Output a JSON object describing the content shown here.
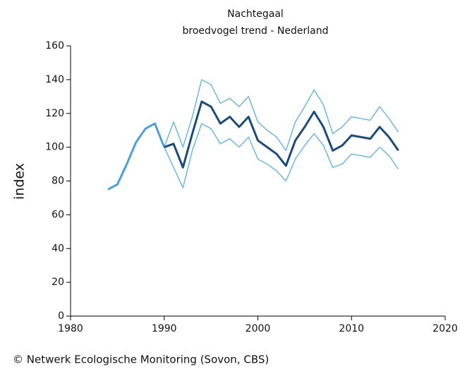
{
  "chart_data": {
    "type": "line",
    "title": "Nachtegaal",
    "subtitle": "broedvogel trend - Nederland",
    "y_label": "index",
    "source": "© Netwerk Ecologische Monitoring (Sovon, CBS)",
    "x": [
      1984,
      1985,
      1986,
      1987,
      1988,
      1989,
      1990,
      1991,
      1992,
      1993,
      1994,
      1995,
      1996,
      1997,
      1998,
      1999,
      2000,
      2001,
      2002,
      2003,
      2004,
      2005,
      2006,
      2007,
      2008,
      2009,
      2010,
      2011,
      2012,
      2013,
      2014,
      2015
    ],
    "series": [
      {
        "color": "#4a9fd8",
        "width": 3,
        "values": [
          75,
          78,
          90,
          103,
          111,
          114,
          100,
          null,
          null,
          null,
          null,
          null,
          null,
          null,
          null,
          null,
          null,
          null,
          null,
          null,
          null,
          null,
          null,
          null,
          null,
          null,
          null,
          null,
          null,
          null,
          null,
          null
        ]
      },
      {
        "color": "#6ab8de",
        "width": 1.5,
        "values": [
          null,
          null,
          null,
          null,
          null,
          null,
          100,
          115,
          100,
          118,
          140,
          137,
          126,
          129,
          124,
          130,
          115,
          110,
          106,
          98,
          115,
          124,
          134,
          125,
          108,
          112,
          118,
          117,
          116,
          124,
          117,
          109
        ]
      },
      {
        "color": "#6ab8de",
        "width": 1.5,
        "values": [
          null,
          null,
          null,
          null,
          null,
          null,
          100,
          88,
          76,
          98,
          114,
          111,
          102,
          105,
          100,
          106,
          93,
          90,
          86,
          80,
          93,
          101,
          108,
          101,
          88,
          90,
          96,
          95,
          94,
          100,
          95,
          87
        ]
      },
      {
        "color": "#1c4a7a",
        "width": 3,
        "values": [
          null,
          null,
          null,
          null,
          null,
          null,
          100,
          102,
          88,
          108,
          127,
          124,
          114,
          118,
          112,
          118,
          104,
          100,
          96,
          89,
          104,
          112,
          121,
          112,
          98,
          101,
          107,
          106,
          105,
          112,
          106,
          98
        ]
      }
    ],
    "xlim": [
      1980,
      2020
    ],
    "xticks": [
      1980,
      1990,
      2000,
      2010,
      2020
    ],
    "ylim": [
      0,
      160
    ],
    "yticks": [
      0,
      20,
      40,
      60,
      80,
      100,
      120,
      140,
      160
    ]
  }
}
